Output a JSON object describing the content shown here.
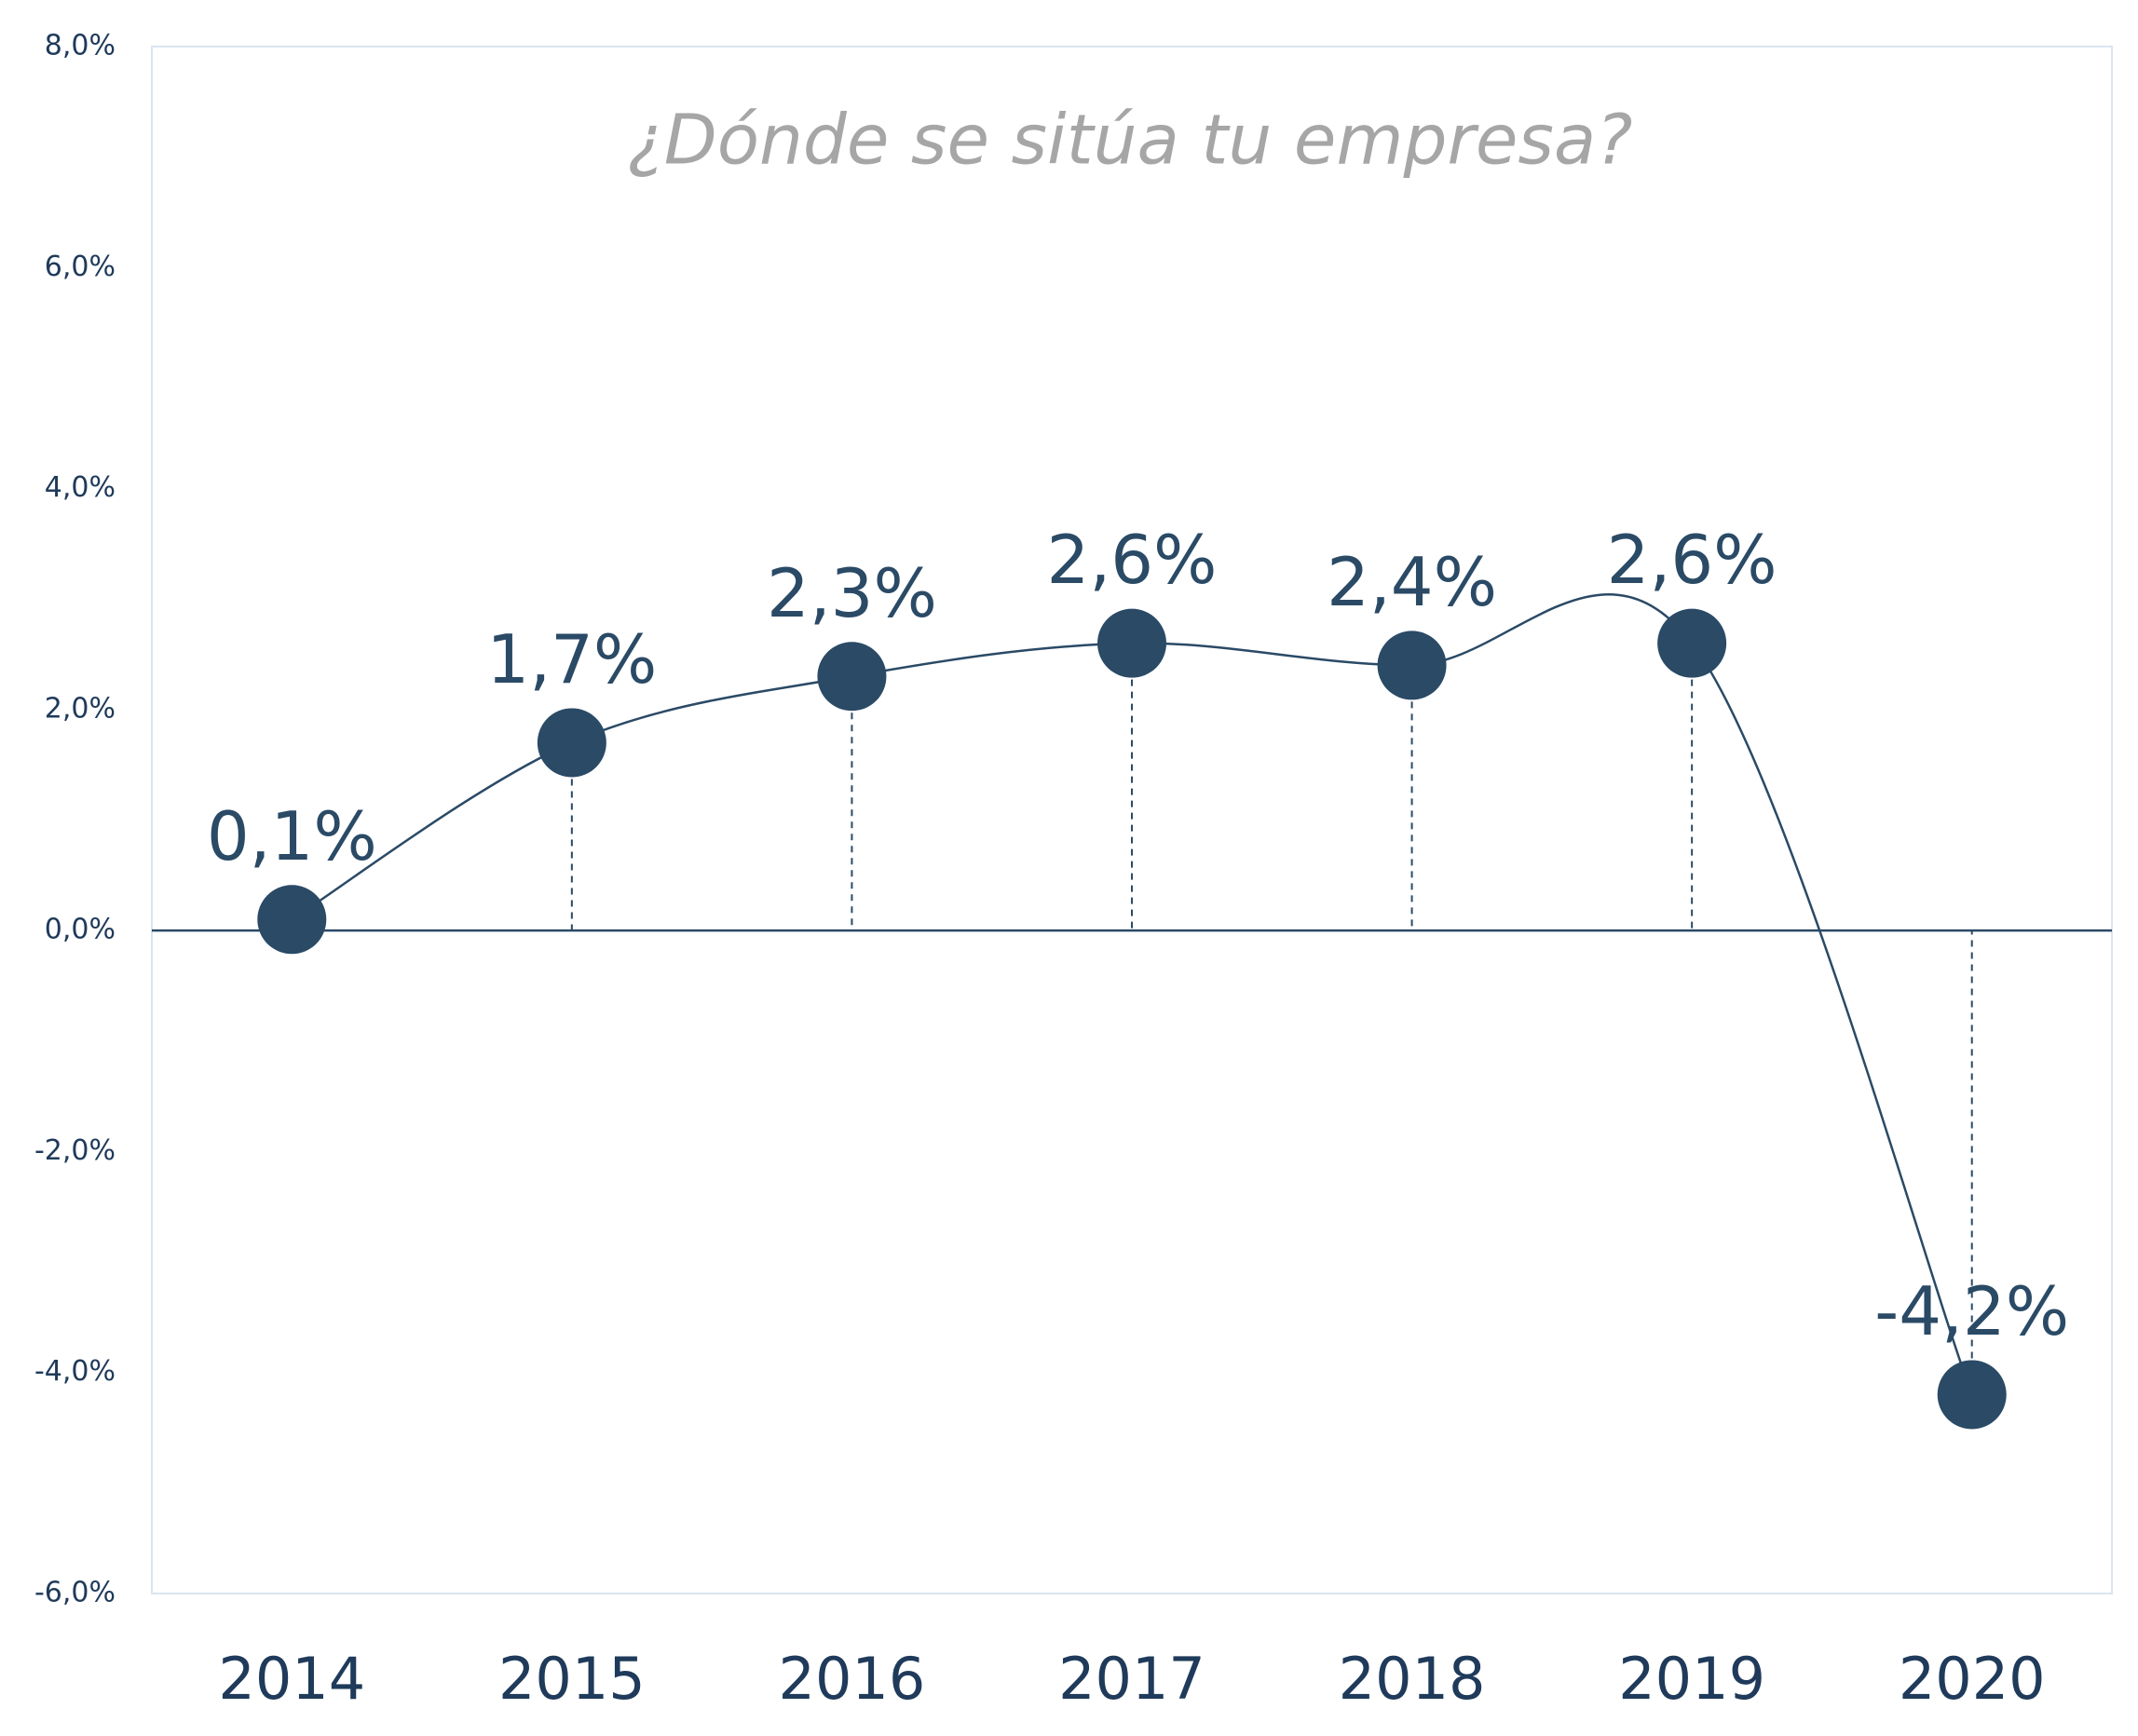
{
  "chart_data": {
    "type": "line",
    "title": "¿Dónde se sitúa tu empresa?",
    "categories": [
      "2014",
      "2015",
      "2016",
      "2017",
      "2018",
      "2019",
      "2020"
    ],
    "series": [
      {
        "color": "#2a4a66",
        "values": [
          0.1,
          1.7,
          2.3,
          2.6,
          2.4,
          2.6,
          -4.2
        ],
        "value_labels": [
          "0,1%",
          "1,7%",
          "2,3%",
          "2,6%",
          "2,4%",
          "2,6%",
          "-4,2%"
        ]
      }
    ],
    "ylim": [
      -6,
      8
    ],
    "yticks": [
      {
        "value": -6,
        "label": "-6,0%"
      },
      {
        "value": -4,
        "label": "-4,0%"
      },
      {
        "value": -2,
        "label": "-2,0%"
      },
      {
        "value": 0,
        "label": "0,0%"
      },
      {
        "value": 2,
        "label": "2,0%"
      },
      {
        "value": 4,
        "label": "4,0%"
      },
      {
        "value": 6,
        "label": "6,0%"
      },
      {
        "value": 8,
        "label": "8,0%"
      }
    ],
    "smooth": true,
    "drop_lines": true
  }
}
